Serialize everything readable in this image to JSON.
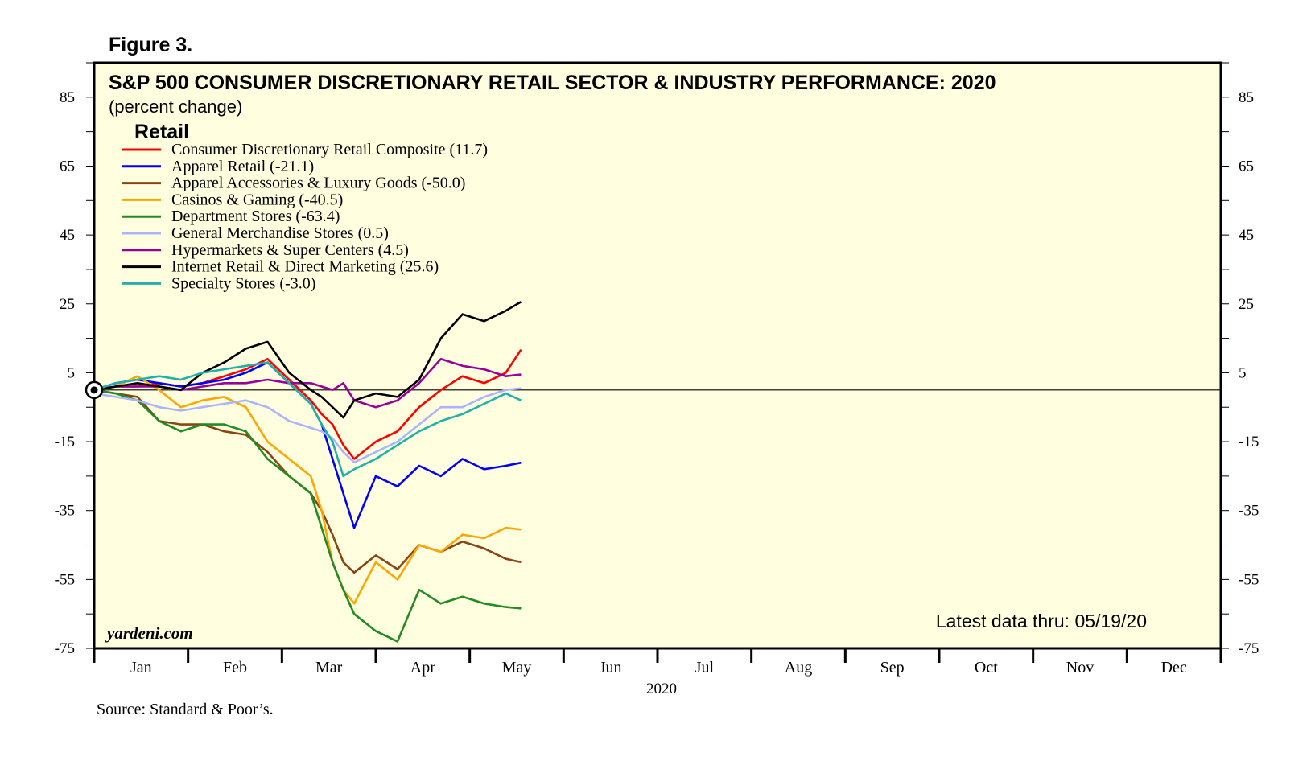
{
  "figure_label": "Figure 3.",
  "source": "Source: Standard & Poor’s.",
  "watermark": "yardeni.com",
  "latest": "Latest data thru: 05/19/20",
  "colors": {
    "background": "#ffffe0",
    "frame": "#000000",
    "reference_line": "#000000"
  },
  "chart_data": {
    "type": "line",
    "title": "S&P 500 CONSUMER DISCRETIONARY RETAIL SECTOR & INDUSTRY PERFORMANCE: 2020",
    "subtitle": "(percent change)",
    "legend_title": "Retail",
    "legend_position": "top-left",
    "xlabel": "2020",
    "ylabel": "",
    "x_unit": "week of 2020 (0 = start of January, 52 = end of December)",
    "xlim": [
      0,
      52
    ],
    "ylim": [
      -75,
      95
    ],
    "y_ticks": [
      85,
      65,
      45,
      25,
      5,
      -15,
      -35,
      -55,
      -75
    ],
    "x_tick_labels": [
      "Jan",
      "Feb",
      "Mar",
      "Apr",
      "May",
      "Jun",
      "Jul",
      "Aug",
      "Sep",
      "Oct",
      "Nov",
      "Dec"
    ],
    "reference_line": 0,
    "grid": false,
    "series": [
      {
        "name": "Consumer Discretionary Retail Composite (11.7)",
        "color": "#ff0000",
        "x": [
          0,
          1,
          2,
          3,
          4,
          5,
          6,
          7,
          8,
          9,
          10,
          10.5,
          11,
          11.5,
          12,
          13,
          14,
          15,
          16,
          17,
          18,
          19,
          19.7
        ],
        "values": [
          0,
          1,
          1,
          2,
          1,
          2,
          4,
          6,
          9,
          3,
          -3,
          -7,
          -10,
          -16,
          -20,
          -15,
          -12,
          -5,
          0,
          4,
          2,
          5,
          11.7
        ]
      },
      {
        "name": "Apparel Retail (-21.1)",
        "color": "#0000ff",
        "x": [
          0,
          1,
          2,
          3,
          4,
          5,
          6,
          7,
          8,
          9,
          10,
          10.5,
          11,
          11.5,
          12,
          13,
          14,
          15,
          16,
          17,
          18,
          19,
          19.7
        ],
        "values": [
          0,
          2,
          3,
          2,
          1,
          2,
          3,
          5,
          8,
          2,
          -4,
          -10,
          -20,
          -30,
          -40,
          -25,
          -28,
          -22,
          -25,
          -20,
          -23,
          -22,
          -21.1
        ]
      },
      {
        "name": "Apparel Accessories & Luxury Goods (-50.0)",
        "color": "#8b4513",
        "x": [
          0,
          1,
          2,
          3,
          4,
          5,
          6,
          7,
          8,
          9,
          10,
          10.5,
          11,
          11.5,
          12,
          13,
          14,
          15,
          16,
          17,
          18,
          19,
          19.7
        ],
        "values": [
          0,
          -1,
          -2,
          -9,
          -10,
          -10,
          -12,
          -13,
          -18,
          -25,
          -30,
          -35,
          -42,
          -50,
          -53,
          -48,
          -52,
          -45,
          -47,
          -44,
          -46,
          -49,
          -50.0
        ]
      },
      {
        "name": "Casinos & Gaming (-40.5)",
        "color": "#ffa500",
        "x": [
          0,
          1,
          2,
          3,
          4,
          5,
          6,
          7,
          8,
          9,
          10,
          10.5,
          11,
          11.5,
          12,
          13,
          14,
          15,
          16,
          17,
          18,
          19,
          19.7
        ],
        "values": [
          0,
          1,
          4,
          0,
          -5,
          -3,
          -2,
          -5,
          -15,
          -20,
          -25,
          -35,
          -50,
          -58,
          -62,
          -50,
          -55,
          -45,
          -47,
          -42,
          -43,
          -40,
          -40.5
        ]
      },
      {
        "name": "Department Stores (-63.4)",
        "color": "#228b22",
        "x": [
          0,
          1,
          2,
          3,
          4,
          5,
          6,
          7,
          8,
          9,
          10,
          10.5,
          11,
          11.5,
          12,
          13,
          14,
          15,
          16,
          17,
          18,
          19,
          19.7
        ],
        "values": [
          0,
          -1,
          -3,
          -9,
          -12,
          -10,
          -10,
          -12,
          -20,
          -25,
          -30,
          -40,
          -50,
          -58,
          -65,
          -70,
          -73,
          -58,
          -62,
          -60,
          -62,
          -63,
          -63.4
        ]
      },
      {
        "name": "General Merchandise Stores (0.5)",
        "color": "#aab4ff",
        "x": [
          0,
          1,
          2,
          3,
          4,
          5,
          6,
          7,
          8,
          9,
          10,
          10.5,
          11,
          11.5,
          12,
          13,
          14,
          15,
          16,
          17,
          18,
          19,
          19.7
        ],
        "values": [
          -1,
          -2,
          -3,
          -5,
          -6,
          -5,
          -4,
          -3,
          -5,
          -9,
          -11,
          -12,
          -14,
          -18,
          -21,
          -18,
          -15,
          -10,
          -5,
          -5,
          -2,
          0,
          0.5
        ]
      },
      {
        "name": "Hypermarkets & Super Centers (4.5)",
        "color": "#990099",
        "x": [
          0,
          1,
          2,
          3,
          4,
          5,
          6,
          7,
          8,
          9,
          10,
          10.5,
          11,
          11.5,
          12,
          13,
          14,
          15,
          16,
          17,
          18,
          19,
          19.7
        ],
        "values": [
          0,
          1,
          1,
          1,
          0,
          1,
          2,
          2,
          3,
          2,
          2,
          1,
          0,
          2,
          -3,
          -5,
          -3,
          2,
          9,
          7,
          6,
          4,
          4.5
        ]
      },
      {
        "name": "Internet Retail & Direct Marketing (25.6)",
        "color": "#000000",
        "x": [
          0,
          1,
          2,
          3,
          4,
          5,
          6,
          7,
          8,
          9,
          10,
          10.5,
          11,
          11.5,
          12,
          13,
          14,
          15,
          16,
          17,
          18,
          19,
          19.7
        ],
        "values": [
          0,
          1,
          2,
          1,
          0,
          5,
          8,
          12,
          14,
          5,
          0,
          -2,
          -5,
          -8,
          -3,
          -1,
          -2,
          3,
          15,
          22,
          20,
          23,
          25.6
        ]
      },
      {
        "name": "Specialty Stores (-3.0)",
        "color": "#20b2aa",
        "x": [
          0,
          1,
          2,
          3,
          4,
          5,
          6,
          7,
          8,
          9,
          10,
          10.5,
          11,
          11.5,
          12,
          13,
          14,
          15,
          16,
          17,
          18,
          19,
          19.7
        ],
        "values": [
          0,
          2,
          3,
          4,
          3,
          5,
          6,
          7,
          8,
          2,
          -4,
          -10,
          -15,
          -25,
          -23,
          -20,
          -16,
          -12,
          -9,
          -7,
          -4,
          -1,
          -3.0
        ]
      }
    ]
  }
}
